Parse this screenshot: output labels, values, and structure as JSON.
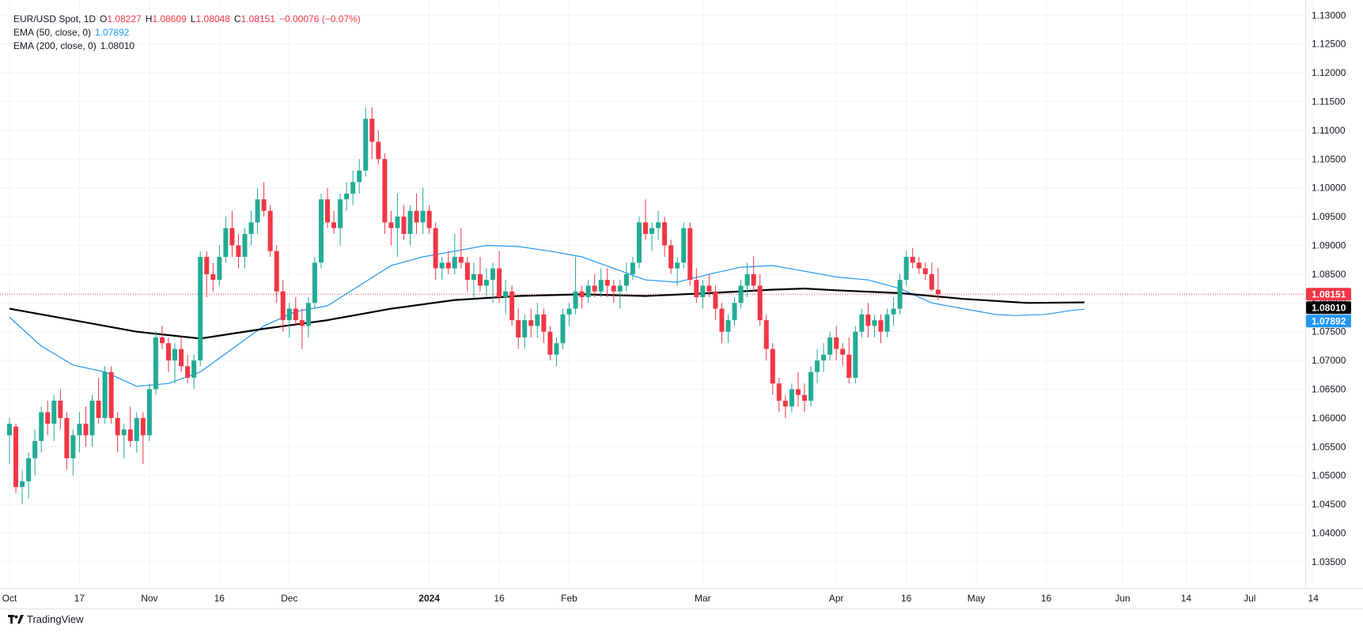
{
  "legend": {
    "symbol": "EUR/USD Spot, 1D",
    "open_label": "O",
    "open": "1.08227",
    "high_label": "H",
    "high": "1.08609",
    "low_label": "L",
    "low": "1.08048",
    "close_label": "C",
    "close": "1.08151",
    "change": "−0.00076 (−0.07%)",
    "ema50_label": "EMA (50, close, 0)",
    "ema50_value": "1.07892",
    "ema200_label": "EMA (200, close, 0)",
    "ema200_value": "1.08010"
  },
  "brand": "TradingView",
  "colors": {
    "up": "#22ab94",
    "down": "#f23645",
    "ema50": "#2196f3",
    "ema200": "#000000",
    "last_price": "#f23645"
  },
  "chart_data": {
    "type": "candlestick",
    "title": "EUR/USD Spot, 1D",
    "ylim": [
      1.031,
      1.131
    ],
    "y_ticks": [
      "1.13000",
      "1.12500",
      "1.12000",
      "1.11500",
      "1.11000",
      "1.10500",
      "1.10000",
      "1.09500",
      "1.09000",
      "1.08500",
      "1.08000",
      "1.07500",
      "1.07000",
      "1.06500",
      "1.06000",
      "1.05500",
      "1.05000",
      "1.04500",
      "1.04000",
      "1.03500"
    ],
    "x_ticks": [
      {
        "label": "Oct",
        "index": 0
      },
      {
        "label": "17",
        "index": 11
      },
      {
        "label": "Nov",
        "index": 22
      },
      {
        "label": "16",
        "index": 33
      },
      {
        "label": "Dec",
        "index": 44
      },
      {
        "label": "2024",
        "index": 66
      },
      {
        "label": "16",
        "index": 77
      },
      {
        "label": "Feb",
        "index": 88
      },
      {
        "label": "Mar",
        "index": 109
      },
      {
        "label": "Apr",
        "index": 130
      },
      {
        "label": "16",
        "index": 141
      },
      {
        "label": "May",
        "index": 152
      },
      {
        "label": "16",
        "index": 163
      },
      {
        "label": "Jun",
        "index": 175
      },
      {
        "label": "14",
        "index": 185
      },
      {
        "label": "Jul",
        "index": 195
      },
      {
        "label": "14",
        "index": 205
      }
    ],
    "price_labels": [
      {
        "name": "last-close",
        "value": 1.08151,
        "text": "1.08151",
        "color": "#f23645"
      },
      {
        "name": "ema200",
        "value": 1.0801,
        "text": "1.08010",
        "color": "#000000"
      },
      {
        "name": "ema50",
        "value": 1.07892,
        "text": "1.07892",
        "color": "#2196f3"
      }
    ],
    "last_price": 1.08151,
    "ema50_points": [
      [
        0,
        1.0775
      ],
      [
        5,
        1.0725
      ],
      [
        10,
        1.0692
      ],
      [
        15,
        1.068
      ],
      [
        20,
        1.0655
      ],
      [
        25,
        1.066
      ],
      [
        30,
        1.068
      ],
      [
        35,
        1.072
      ],
      [
        40,
        1.076
      ],
      [
        45,
        1.0785
      ],
      [
        50,
        1.0795
      ],
      [
        55,
        1.083
      ],
      [
        60,
        1.0865
      ],
      [
        65,
        1.088
      ],
      [
        70,
        1.089
      ],
      [
        75,
        1.09
      ],
      [
        80,
        1.0898
      ],
      [
        85,
        1.089
      ],
      [
        90,
        1.088
      ],
      [
        95,
        1.086
      ],
      [
        100,
        1.084
      ],
      [
        105,
        1.0836
      ],
      [
        110,
        1.085
      ],
      [
        115,
        1.0862
      ],
      [
        120,
        1.0865
      ],
      [
        125,
        1.0855
      ],
      [
        130,
        1.0845
      ],
      [
        135,
        1.084
      ],
      [
        140,
        1.0825
      ],
      [
        145,
        1.08
      ],
      [
        150,
        1.079
      ],
      [
        155,
        1.078
      ],
      [
        158,
        1.0778
      ],
      [
        163,
        1.078
      ],
      [
        167,
        1.0787
      ],
      [
        169,
        1.0789
      ]
    ],
    "ema200_points": [
      [
        0,
        1.079
      ],
      [
        10,
        1.077
      ],
      [
        20,
        1.075
      ],
      [
        30,
        1.0738
      ],
      [
        40,
        1.0755
      ],
      [
        50,
        1.077
      ],
      [
        60,
        1.079
      ],
      [
        70,
        1.0805
      ],
      [
        80,
        1.0812
      ],
      [
        90,
        1.0815
      ],
      [
        100,
        1.0812
      ],
      [
        110,
        1.0817
      ],
      [
        120,
        1.0823
      ],
      [
        125,
        1.0825
      ],
      [
        130,
        1.0822
      ],
      [
        140,
        1.0817
      ],
      [
        150,
        1.0807
      ],
      [
        160,
        1.08
      ],
      [
        169,
        1.0801
      ]
    ],
    "ohlc": [
      [
        1.057,
        1.06,
        1.052,
        1.059
      ],
      [
        1.0585,
        1.059,
        1.047,
        1.048
      ],
      [
        1.048,
        1.051,
        1.045,
        1.049
      ],
      [
        1.049,
        1.054,
        1.046,
        1.053
      ],
      [
        1.053,
        1.058,
        1.05,
        1.056
      ],
      [
        1.056,
        1.062,
        1.054,
        1.061
      ],
      [
        1.061,
        1.063,
        1.057,
        1.059
      ],
      [
        1.059,
        1.064,
        1.056,
        1.063
      ],
      [
        1.063,
        1.065,
        1.058,
        1.06
      ],
      [
        1.06,
        1.061,
        1.051,
        1.053
      ],
      [
        1.053,
        1.058,
        1.05,
        1.057
      ],
      [
        1.057,
        1.061,
        1.054,
        1.059
      ],
      [
        1.059,
        1.062,
        1.055,
        1.057
      ],
      [
        1.057,
        1.064,
        1.055,
        1.063
      ],
      [
        1.063,
        1.067,
        1.059,
        1.06
      ],
      [
        1.06,
        1.069,
        1.059,
        1.068
      ],
      [
        1.068,
        1.069,
        1.059,
        1.06
      ],
      [
        1.06,
        1.061,
        1.054,
        1.057
      ],
      [
        1.057,
        1.059,
        1.053,
        1.058
      ],
      [
        1.058,
        1.062,
        1.055,
        1.056
      ],
      [
        1.056,
        1.061,
        1.054,
        1.06
      ],
      [
        1.06,
        1.061,
        1.052,
        1.057
      ],
      [
        1.057,
        1.066,
        1.056,
        1.065
      ],
      [
        1.065,
        1.075,
        1.064,
        1.074
      ],
      [
        1.074,
        1.076,
        1.072,
        1.073
      ],
      [
        1.073,
        1.074,
        1.068,
        1.07
      ],
      [
        1.07,
        1.073,
        1.066,
        1.072
      ],
      [
        1.072,
        1.074,
        1.068,
        1.069
      ],
      [
        1.069,
        1.071,
        1.066,
        1.067
      ],
      [
        1.067,
        1.071,
        1.065,
        1.07
      ],
      [
        1.07,
        1.089,
        1.069,
        1.088
      ],
      [
        1.088,
        1.089,
        1.081,
        1.085
      ],
      [
        1.085,
        1.087,
        1.082,
        1.084
      ],
      [
        1.084,
        1.09,
        1.083,
        1.088
      ],
      [
        1.088,
        1.095,
        1.087,
        1.093
      ],
      [
        1.093,
        1.096,
        1.088,
        1.09
      ],
      [
        1.09,
        1.092,
        1.086,
        1.088
      ],
      [
        1.088,
        1.093,
        1.086,
        1.092
      ],
      [
        1.092,
        1.096,
        1.09,
        1.094
      ],
      [
        1.094,
        1.1,
        1.092,
        1.098
      ],
      [
        1.098,
        1.101,
        1.095,
        1.096
      ],
      [
        1.096,
        1.097,
        1.088,
        1.089
      ],
      [
        1.089,
        1.09,
        1.08,
        1.082
      ],
      [
        1.082,
        1.084,
        1.075,
        1.077
      ],
      [
        1.077,
        1.08,
        1.074,
        1.079
      ],
      [
        1.079,
        1.081,
        1.076,
        1.077
      ],
      [
        1.077,
        1.079,
        1.072,
        1.076
      ],
      [
        1.076,
        1.081,
        1.074,
        1.08
      ],
      [
        1.08,
        1.088,
        1.079,
        1.087
      ],
      [
        1.087,
        1.099,
        1.086,
        1.098
      ],
      [
        1.098,
        1.1,
        1.093,
        1.094
      ],
      [
        1.094,
        1.096,
        1.092,
        1.093
      ],
      [
        1.093,
        1.099,
        1.09,
        1.098
      ],
      [
        1.098,
        1.101,
        1.096,
        1.099
      ],
      [
        1.099,
        1.103,
        1.097,
        1.101
      ],
      [
        1.101,
        1.105,
        1.099,
        1.103
      ],
      [
        1.103,
        1.114,
        1.102,
        1.112
      ],
      [
        1.112,
        1.114,
        1.105,
        1.108
      ],
      [
        1.108,
        1.11,
        1.104,
        1.105
      ],
      [
        1.105,
        1.106,
        1.092,
        1.094
      ],
      [
        1.094,
        1.096,
        1.09,
        1.093
      ],
      [
        1.093,
        1.099,
        1.088,
        1.095
      ],
      [
        1.095,
        1.097,
        1.091,
        1.092
      ],
      [
        1.092,
        1.097,
        1.09,
        1.096
      ],
      [
        1.096,
        1.099,
        1.092,
        1.094
      ],
      [
        1.094,
        1.1,
        1.092,
        1.096
      ],
      [
        1.096,
        1.097,
        1.092,
        1.093
      ],
      [
        1.093,
        1.094,
        1.084,
        1.086
      ],
      [
        1.086,
        1.088,
        1.084,
        1.087
      ],
      [
        1.087,
        1.089,
        1.085,
        1.086
      ],
      [
        1.086,
        1.092,
        1.085,
        1.088
      ],
      [
        1.088,
        1.093,
        1.086,
        1.087
      ],
      [
        1.087,
        1.088,
        1.082,
        1.084
      ],
      [
        1.084,
        1.087,
        1.081,
        1.085
      ],
      [
        1.085,
        1.088,
        1.082,
        1.083
      ],
      [
        1.083,
        1.086,
        1.081,
        1.084
      ],
      [
        1.084,
        1.087,
        1.08,
        1.086
      ],
      [
        1.086,
        1.089,
        1.08,
        1.081
      ],
      [
        1.081,
        1.084,
        1.078,
        1.082
      ],
      [
        1.082,
        1.083,
        1.076,
        1.077
      ],
      [
        1.077,
        1.079,
        1.072,
        1.074
      ],
      [
        1.074,
        1.078,
        1.072,
        1.077
      ],
      [
        1.077,
        1.079,
        1.074,
        1.076
      ],
      [
        1.076,
        1.08,
        1.074,
        1.078
      ],
      [
        1.078,
        1.079,
        1.073,
        1.075
      ],
      [
        1.075,
        1.076,
        1.07,
        1.071
      ],
      [
        1.071,
        1.074,
        1.069,
        1.073
      ],
      [
        1.073,
        1.079,
        1.072,
        1.078
      ],
      [
        1.078,
        1.08,
        1.076,
        1.079
      ],
      [
        1.079,
        1.088,
        1.078,
        1.082
      ],
      [
        1.082,
        1.083,
        1.079,
        1.081
      ],
      [
        1.081,
        1.084,
        1.08,
        1.083
      ],
      [
        1.083,
        1.085,
        1.081,
        1.082
      ],
      [
        1.082,
        1.086,
        1.081,
        1.084
      ],
      [
        1.084,
        1.086,
        1.081,
        1.083
      ],
      [
        1.083,
        1.084,
        1.08,
        1.082
      ],
      [
        1.082,
        1.084,
        1.079,
        1.083
      ],
      [
        1.083,
        1.087,
        1.082,
        1.085
      ],
      [
        1.085,
        1.088,
        1.084,
        1.087
      ],
      [
        1.087,
        1.095,
        1.086,
        1.094
      ],
      [
        1.094,
        1.098,
        1.091,
        1.092
      ],
      [
        1.092,
        1.094,
        1.089,
        1.093
      ],
      [
        1.093,
        1.096,
        1.091,
        1.094
      ],
      [
        1.094,
        1.095,
        1.088,
        1.09
      ],
      [
        1.09,
        1.091,
        1.085,
        1.086
      ],
      [
        1.086,
        1.088,
        1.083,
        1.087
      ],
      [
        1.087,
        1.094,
        1.086,
        1.093
      ],
      [
        1.093,
        1.094,
        1.083,
        1.084
      ],
      [
        1.084,
        1.086,
        1.08,
        1.081
      ],
      [
        1.081,
        1.084,
        1.079,
        1.083
      ],
      [
        1.083,
        1.085,
        1.081,
        1.082
      ],
      [
        1.082,
        1.083,
        1.077,
        1.079
      ],
      [
        1.079,
        1.08,
        1.073,
        1.075
      ],
      [
        1.075,
        1.078,
        1.073,
        1.077
      ],
      [
        1.077,
        1.081,
        1.076,
        1.08
      ],
      [
        1.08,
        1.084,
        1.079,
        1.083
      ],
      [
        1.083,
        1.087,
        1.081,
        1.085
      ],
      [
        1.085,
        1.088,
        1.082,
        1.083
      ],
      [
        1.083,
        1.085,
        1.076,
        1.077
      ],
      [
        1.077,
        1.078,
        1.07,
        1.072
      ],
      [
        1.072,
        1.073,
        1.064,
        1.066
      ],
      [
        1.066,
        1.067,
        1.061,
        1.063
      ],
      [
        1.063,
        1.064,
        1.06,
        1.062
      ],
      [
        1.062,
        1.066,
        1.061,
        1.065
      ],
      [
        1.065,
        1.068,
        1.062,
        1.064
      ],
      [
        1.064,
        1.066,
        1.061,
        1.063
      ],
      [
        1.063,
        1.069,
        1.062,
        1.068
      ],
      [
        1.068,
        1.072,
        1.066,
        1.07
      ],
      [
        1.07,
        1.073,
        1.068,
        1.071
      ],
      [
        1.071,
        1.075,
        1.07,
        1.074
      ],
      [
        1.074,
        1.076,
        1.07,
        1.072
      ],
      [
        1.072,
        1.073,
        1.069,
        1.071
      ],
      [
        1.071,
        1.074,
        1.066,
        1.067
      ],
      [
        1.067,
        1.076,
        1.066,
        1.075
      ],
      [
        1.075,
        1.079,
        1.074,
        1.078
      ],
      [
        1.078,
        1.08,
        1.074,
        1.076
      ],
      [
        1.076,
        1.078,
        1.074,
        1.077
      ],
      [
        1.077,
        1.078,
        1.073,
        1.075
      ],
      [
        1.075,
        1.079,
        1.074,
        1.078
      ],
      [
        1.078,
        1.081,
        1.076,
        1.079
      ],
      [
        1.079,
        1.085,
        1.078,
        1.084
      ],
      [
        1.084,
        1.089,
        1.083,
        1.088
      ],
      [
        1.088,
        1.0895,
        1.086,
        1.087
      ],
      [
        1.087,
        1.088,
        1.085,
        1.086
      ],
      [
        1.086,
        1.087,
        1.084,
        1.085
      ],
      [
        1.085,
        1.087,
        1.082,
        1.0823
      ],
      [
        1.0823,
        1.0861,
        1.0805,
        1.0815
      ]
    ]
  }
}
